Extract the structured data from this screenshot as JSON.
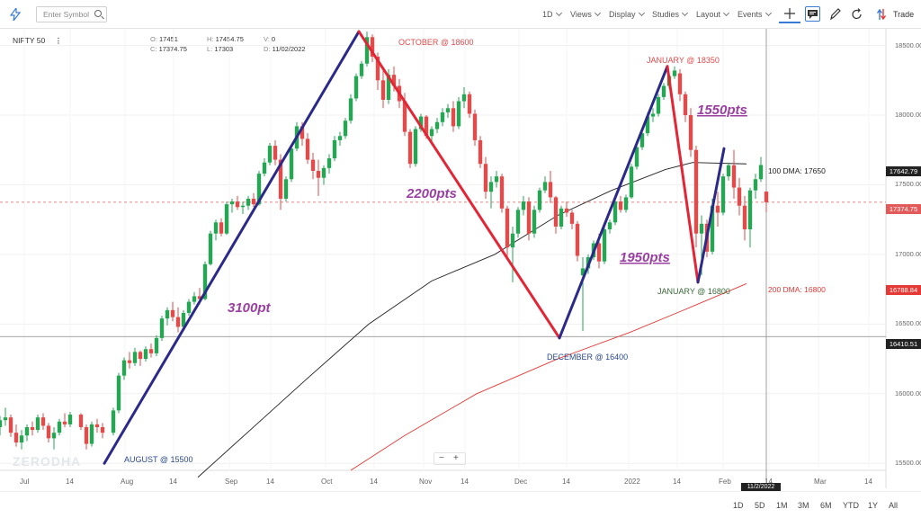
{
  "toolbar": {
    "search_placeholder": "Enter Symbol",
    "interval": "1D",
    "views": "Views",
    "display": "Display",
    "studies": "Studies",
    "layout": "Layout",
    "events": "Events",
    "trade": "Trade"
  },
  "legend": {
    "symbol": "NIFTY 50",
    "o_label": "O:",
    "o": "17451",
    "h_label": "H:",
    "h": "17454.75",
    "v_label": "V:",
    "v": "0",
    "c_label": "C:",
    "c": "17374.75",
    "l_label": "L:",
    "l": "17303",
    "d_label": "D:",
    "d": "11/02/2022"
  },
  "ranges": [
    "1D",
    "5D",
    "1M",
    "3M",
    "6M",
    "YTD",
    "1Y",
    "All"
  ],
  "watermark": "ZERODHA",
  "zoom": {
    "minus": "−",
    "plus": "+"
  },
  "price_tags": {
    "current": "17642.79",
    "last": "17374.75",
    "dma200": "16788.84",
    "crosshair": "16410.51"
  },
  "crosshair_date": "11/2/2022",
  "colors": {
    "up": "#26a654",
    "down": "#e04b4b",
    "trend_up": "#2b2a8a",
    "trend_down": "#e32636",
    "dma100": "#222222",
    "dma200": "#e53935",
    "label_purple": "#9b3fa3"
  },
  "chart_data": {
    "type": "candlestick",
    "x_ticks": [
      "Jul",
      "14",
      "Aug",
      "14",
      "Sep",
      "14",
      "Oct",
      "14",
      "Nov",
      "14",
      "Dec",
      "14",
      "2022",
      "14",
      "Feb",
      "14",
      "Mar",
      "14"
    ],
    "y_ticks": [
      15500,
      16000,
      16500,
      17000,
      17500,
      18000,
      18500
    ],
    "ylim": [
      15450,
      18620
    ],
    "annotations": {
      "aug": "AUGUST @ 15500",
      "oct": "OCTOBER @ 18600",
      "dec": "DECEMBER @ 16400",
      "jan_high": "JANUARY @ 18350",
      "jan_low": "JANUARY @ 16800",
      "dma100": "100 DMA: 17650",
      "dma200": "200 DMA: 16800",
      "m1": "3100pt",
      "m2": "2200pts",
      "m3": "1950pts",
      "m4": "1550pts"
    },
    "trend_points": [
      {
        "name": "aug",
        "x": 0.116,
        "y": 15500
      },
      {
        "name": "oct",
        "x": 0.399,
        "y": 18600
      },
      {
        "name": "dec",
        "x": 0.622,
        "y": 16400
      },
      {
        "name": "jan_high",
        "x": 0.742,
        "y": 18350
      },
      {
        "name": "jan_low",
        "x": 0.776,
        "y": 16800
      },
      {
        "name": "feb_high",
        "x": 0.805,
        "y": 17760
      }
    ],
    "dma100": [
      [
        0.22,
        15400
      ],
      [
        0.28,
        15750
      ],
      [
        0.34,
        16100
      ],
      [
        0.41,
        16500
      ],
      [
        0.48,
        16810
      ],
      [
        0.55,
        17000
      ],
      [
        0.62,
        17280
      ],
      [
        0.68,
        17460
      ],
      [
        0.74,
        17610
      ],
      [
        0.77,
        17660
      ],
      [
        0.83,
        17650
      ]
    ],
    "dma200": [
      [
        0.39,
        15450
      ],
      [
        0.45,
        15700
      ],
      [
        0.53,
        16000
      ],
      [
        0.62,
        16250
      ],
      [
        0.7,
        16440
      ],
      [
        0.76,
        16600
      ],
      [
        0.83,
        16790
      ]
    ],
    "last_price": 17374.75,
    "crosshair_price": 16410.51,
    "candles": [
      [
        0.0,
        15760,
        15840,
        15700,
        15810
      ],
      [
        0.006,
        15810,
        15900,
        15770,
        15830
      ],
      [
        0.012,
        15830,
        15850,
        15690,
        15720
      ],
      [
        0.018,
        15720,
        15780,
        15620,
        15650
      ],
      [
        0.024,
        15650,
        15740,
        15600,
        15700
      ],
      [
        0.03,
        15700,
        15780,
        15660,
        15760
      ],
      [
        0.036,
        15760,
        15800,
        15700,
        15740
      ],
      [
        0.042,
        15740,
        15850,
        15720,
        15830
      ],
      [
        0.048,
        15830,
        15860,
        15740,
        15770
      ],
      [
        0.054,
        15770,
        15790,
        15650,
        15680
      ],
      [
        0.06,
        15680,
        15760,
        15600,
        15720
      ],
      [
        0.066,
        15720,
        15820,
        15700,
        15800
      ],
      [
        0.072,
        15800,
        15860,
        15760,
        15780
      ],
      [
        0.078,
        15780,
        15870,
        15760,
        15850
      ],
      [
        0.09,
        15850,
        15860,
        15740,
        15760
      ],
      [
        0.096,
        15760,
        15780,
        15600,
        15640
      ],
      [
        0.102,
        15640,
        15800,
        15620,
        15780
      ],
      [
        0.108,
        15780,
        15820,
        15720,
        15760
      ],
      [
        0.114,
        15760,
        15790,
        15680,
        15720
      ],
      [
        0.126,
        15720,
        15900,
        15700,
        15880
      ],
      [
        0.132,
        15880,
        16150,
        15860,
        16130
      ],
      [
        0.138,
        16130,
        16260,
        16100,
        16240
      ],
      [
        0.144,
        16240,
        16300,
        16180,
        16220
      ],
      [
        0.15,
        16220,
        16330,
        16200,
        16300
      ],
      [
        0.156,
        16300,
        16310,
        16200,
        16250
      ],
      [
        0.162,
        16250,
        16340,
        16230,
        16320
      ],
      [
        0.168,
        16320,
        16360,
        16260,
        16290
      ],
      [
        0.174,
        16290,
        16420,
        16270,
        16400
      ],
      [
        0.18,
        16400,
        16560,
        16380,
        16540
      ],
      [
        0.186,
        16540,
        16620,
        16490,
        16600
      ],
      [
        0.192,
        16600,
        16660,
        16520,
        16550
      ],
      [
        0.198,
        16550,
        16620,
        16440,
        16480
      ],
      [
        0.204,
        16480,
        16600,
        16460,
        16580
      ],
      [
        0.21,
        16580,
        16680,
        16560,
        16660
      ],
      [
        0.216,
        16660,
        16730,
        16640,
        16700
      ],
      [
        0.222,
        16700,
        16760,
        16640,
        16680
      ],
      [
        0.228,
        16680,
        16950,
        16670,
        16930
      ],
      [
        0.234,
        16930,
        17170,
        16920,
        17150
      ],
      [
        0.24,
        17150,
        17250,
        17100,
        17230
      ],
      [
        0.246,
        17230,
        17260,
        17130,
        17150
      ],
      [
        0.252,
        17150,
        17380,
        17140,
        17360
      ],
      [
        0.258,
        17360,
        17400,
        17300,
        17380
      ],
      [
        0.264,
        17380,
        17420,
        17320,
        17340
      ],
      [
        0.27,
        17340,
        17380,
        17290,
        17350
      ],
      [
        0.276,
        17350,
        17420,
        17320,
        17400
      ],
      [
        0.282,
        17400,
        17440,
        17340,
        17360
      ],
      [
        0.288,
        17360,
        17600,
        17350,
        17580
      ],
      [
        0.294,
        17580,
        17690,
        17560,
        17660
      ],
      [
        0.3,
        17660,
        17800,
        17640,
        17780
      ],
      [
        0.306,
        17780,
        17820,
        17640,
        17680
      ],
      [
        0.312,
        17680,
        17720,
        17320,
        17400
      ],
      [
        0.318,
        17400,
        17560,
        17380,
        17540
      ],
      [
        0.324,
        17540,
        17780,
        17520,
        17760
      ],
      [
        0.33,
        17760,
        17950,
        17740,
        17920
      ],
      [
        0.336,
        17920,
        17950,
        17780,
        17830
      ],
      [
        0.342,
        17830,
        17870,
        17650,
        17680
      ],
      [
        0.348,
        17680,
        17730,
        17540,
        17600
      ],
      [
        0.354,
        17600,
        17680,
        17420,
        17550
      ],
      [
        0.36,
        17550,
        17640,
        17500,
        17620
      ],
      [
        0.366,
        17620,
        17720,
        17580,
        17690
      ],
      [
        0.372,
        17690,
        17850,
        17670,
        17820
      ],
      [
        0.378,
        17820,
        17880,
        17780,
        17850
      ],
      [
        0.384,
        17850,
        17980,
        17830,
        17960
      ],
      [
        0.39,
        17960,
        18150,
        17940,
        18120
      ],
      [
        0.396,
        18120,
        18300,
        18100,
        18280
      ],
      [
        0.402,
        18280,
        18390,
        18260,
        18370
      ],
      [
        0.408,
        18370,
        18600,
        18350,
        18560
      ],
      [
        0.414,
        18560,
        18580,
        18380,
        18420
      ],
      [
        0.42,
        18420,
        18450,
        18180,
        18250
      ],
      [
        0.426,
        18250,
        18320,
        18050,
        18110
      ],
      [
        0.432,
        18110,
        18330,
        18080,
        18290
      ],
      [
        0.438,
        18290,
        18350,
        18170,
        18210
      ],
      [
        0.444,
        18210,
        18260,
        18050,
        18100
      ],
      [
        0.45,
        18100,
        18160,
        17850,
        17880
      ],
      [
        0.456,
        17880,
        17900,
        17620,
        17650
      ],
      [
        0.462,
        17650,
        17920,
        17630,
        17900
      ],
      [
        0.468,
        17900,
        18010,
        17880,
        17990
      ],
      [
        0.474,
        17990,
        18000,
        17830,
        17850
      ],
      [
        0.48,
        17850,
        17920,
        17800,
        17900
      ],
      [
        0.486,
        17900,
        17980,
        17870,
        17950
      ],
      [
        0.492,
        17950,
        18050,
        17920,
        18020
      ],
      [
        0.498,
        18020,
        18080,
        17980,
        18050
      ],
      [
        0.504,
        18050,
        18100,
        17880,
        17920
      ],
      [
        0.51,
        17920,
        18130,
        17900,
        18100
      ],
      [
        0.516,
        18100,
        18200,
        18050,
        18150
      ],
      [
        0.522,
        18150,
        18170,
        17980,
        18010
      ],
      [
        0.528,
        18010,
        18040,
        17780,
        17820
      ],
      [
        0.534,
        17820,
        17850,
        17620,
        17650
      ],
      [
        0.54,
        17650,
        17700,
        17400,
        17450
      ],
      [
        0.546,
        17450,
        17560,
        17330,
        17520
      ],
      [
        0.552,
        17520,
        17600,
        17480,
        17560
      ],
      [
        0.558,
        17560,
        17580,
        17300,
        17330
      ],
      [
        0.564,
        17330,
        17350,
        16980,
        17050
      ],
      [
        0.57,
        17050,
        17200,
        16800,
        17150
      ],
      [
        0.576,
        17150,
        17340,
        17120,
        17320
      ],
      [
        0.582,
        17320,
        17420,
        17280,
        17380
      ],
      [
        0.588,
        17380,
        17410,
        17100,
        17150
      ],
      [
        0.594,
        17150,
        17350,
        17120,
        17320
      ],
      [
        0.6,
        17320,
        17480,
        17300,
        17460
      ],
      [
        0.606,
        17460,
        17560,
        17440,
        17520
      ],
      [
        0.612,
        17520,
        17600,
        17370,
        17410
      ],
      [
        0.618,
        17410,
        17420,
        17150,
        17200
      ],
      [
        0.624,
        17200,
        17350,
        17180,
        17330
      ],
      [
        0.63,
        17330,
        17380,
        17270,
        17300
      ],
      [
        0.636,
        17300,
        17320,
        17180,
        17220
      ],
      [
        0.642,
        17220,
        17240,
        16950,
        16990
      ],
      [
        0.648,
        16850,
        16980,
        16450,
        16900
      ],
      [
        0.654,
        16900,
        17000,
        16860,
        16980
      ],
      [
        0.66,
        16980,
        17100,
        16960,
        17080
      ],
      [
        0.666,
        17080,
        17150,
        16900,
        16950
      ],
      [
        0.672,
        16950,
        17200,
        16930,
        17180
      ],
      [
        0.678,
        17180,
        17250,
        17150,
        17230
      ],
      [
        0.684,
        17230,
        17400,
        17210,
        17380
      ],
      [
        0.69,
        17380,
        17420,
        17300,
        17320
      ],
      [
        0.696,
        17320,
        17430,
        17300,
        17410
      ],
      [
        0.702,
        17410,
        17650,
        17400,
        17630
      ],
      [
        0.708,
        17630,
        17800,
        17610,
        17770
      ],
      [
        0.714,
        17770,
        17900,
        17750,
        17870
      ],
      [
        0.72,
        17870,
        18020,
        17850,
        17990
      ],
      [
        0.726,
        17990,
        18050,
        17950,
        18010
      ],
      [
        0.732,
        18010,
        18150,
        17990,
        18130
      ],
      [
        0.738,
        18130,
        18230,
        18110,
        18210
      ],
      [
        0.744,
        18210,
        18300,
        18190,
        18280
      ],
      [
        0.75,
        18280,
        18350,
        18260,
        18320
      ],
      [
        0.756,
        18300,
        18330,
        18100,
        18150
      ],
      [
        0.762,
        18150,
        18170,
        17950,
        18000
      ],
      [
        0.768,
        18000,
        18050,
        17700,
        17750
      ],
      [
        0.774,
        17750,
        17780,
        17050,
        17150
      ],
      [
        0.78,
        17150,
        17280,
        16850,
        17220
      ],
      [
        0.786,
        17220,
        17250,
        16980,
        17020
      ],
      [
        0.792,
        17020,
        17400,
        17000,
        17350
      ],
      [
        0.798,
        17350,
        17450,
        17200,
        17300
      ],
      [
        0.804,
        17300,
        17580,
        17280,
        17560
      ],
      [
        0.81,
        17560,
        17660,
        17530,
        17640
      ],
      [
        0.816,
        17640,
        17750,
        17400,
        17480
      ],
      [
        0.822,
        17480,
        17550,
        17280,
        17350
      ],
      [
        0.828,
        17350,
        17420,
        17100,
        17180
      ],
      [
        0.834,
        17180,
        17480,
        17050,
        17460
      ],
      [
        0.84,
        17460,
        17580,
        17400,
        17540
      ],
      [
        0.846,
        17540,
        17700,
        17520,
        17642
      ],
      [
        0.852,
        17451,
        17455,
        17303,
        17375
      ]
    ]
  }
}
